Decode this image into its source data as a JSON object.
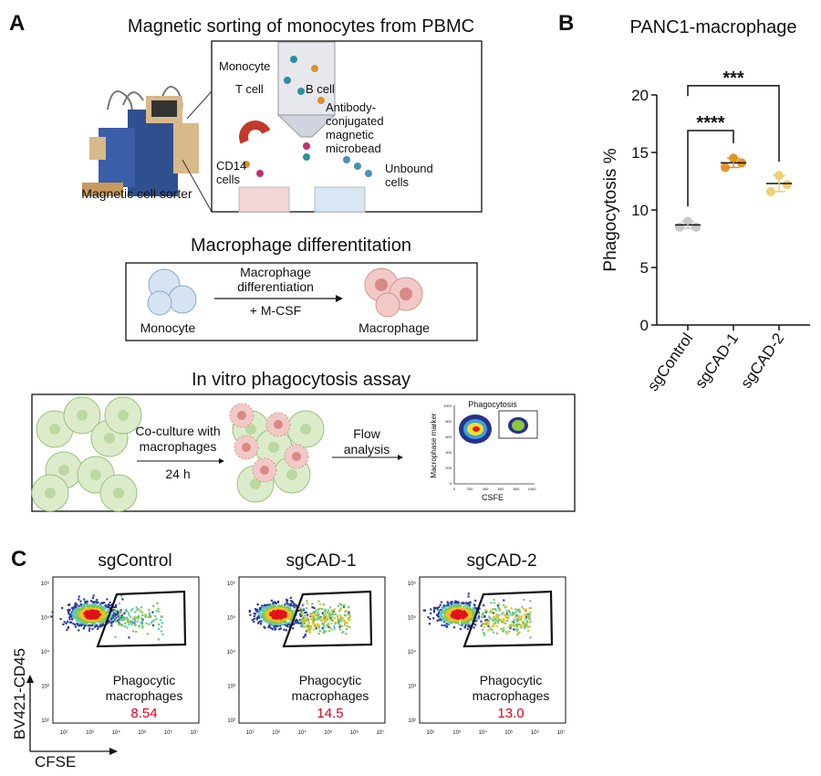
{
  "panel_a": {
    "label": "A",
    "sorting": {
      "title": "Magnetic sorting of monocytes from PBMC",
      "sorter_label": "Magnetic cell sorter",
      "monocyte": "Monocyte",
      "t_cell": "T cell",
      "b_cell": "B cell",
      "microbead": [
        "Antibody-",
        "conjugated",
        "magnetic",
        "microbead"
      ],
      "cd14": [
        "CD14",
        "cells"
      ],
      "unbound": [
        "Unbound",
        "cells"
      ]
    },
    "differentiation": {
      "title": "Macrophage differentitation",
      "step": [
        "Macrophage",
        "differentiation"
      ],
      "reagent": "+ M-CSF",
      "from": "Monocyte",
      "to": "Macrophage"
    },
    "assay": {
      "title": "In vitro phagocytosis assay",
      "coculture": [
        "Co-culture with",
        "macrophages"
      ],
      "time": "24 h",
      "flow": [
        "Flow",
        "analysis"
      ],
      "mini_plot": {
        "title": "Phagocytosis",
        "ylabel": "Macrophase marker",
        "xlabel": "CSFE",
        "ticks": [
          "0",
          "200",
          "400",
          "600",
          "800",
          "1000"
        ]
      }
    }
  },
  "panel_b": {
    "label": "B",
    "title": "PANC1-macrophage"
  },
  "chart_data": {
    "type": "scatter",
    "title": "PANC1-macrophage",
    "xlabel": "",
    "ylabel": "Phagocytosis %",
    "ylim": [
      0,
      20
    ],
    "yticks": [
      "0",
      "5",
      "10",
      "15",
      "20"
    ],
    "categories": [
      "sgControl",
      "sgCAD-1",
      "sgCAD-2"
    ],
    "series": [
      {
        "category": "sgControl",
        "values": [
          9.0,
          8.5,
          8.5
        ],
        "mean": 8.7,
        "sd": 0.3,
        "color": "#c8c8ca"
      },
      {
        "category": "sgCAD-1",
        "values": [
          14.5,
          13.7,
          14.1
        ],
        "mean": 14.1,
        "sd": 0.4,
        "color": "#e0962a"
      },
      {
        "category": "sgCAD-2",
        "values": [
          13.0,
          11.6,
          12.2
        ],
        "mean": 12.3,
        "sd": 0.7,
        "color": "#f0d070"
      }
    ],
    "significance": [
      {
        "from": "sgControl",
        "to": "sgCAD-1",
        "label": "****"
      },
      {
        "from": "sgControl",
        "to": "sgCAD-2",
        "label": "***"
      }
    ],
    "grid": false,
    "legend": "none"
  },
  "panel_c": {
    "label": "C",
    "ylabel": "BV421-CD45",
    "xlabel": "CFSE",
    "xticks": [
      "10²",
      "10³",
      "10⁴",
      "10⁵",
      "10⁶",
      "10⁷"
    ],
    "yticks": [
      "10²",
      "10³",
      "10⁴",
      "10⁵",
      "10⁶"
    ],
    "gate_label": [
      "Phagocytic",
      "macrophages"
    ],
    "value_color": "#e0001a",
    "plots": [
      {
        "title": "sgControl",
        "value": "8.54"
      },
      {
        "title": "sgCAD-1",
        "value": "14.5"
      },
      {
        "title": "sgCAD-2",
        "value": "13.0"
      }
    ]
  }
}
